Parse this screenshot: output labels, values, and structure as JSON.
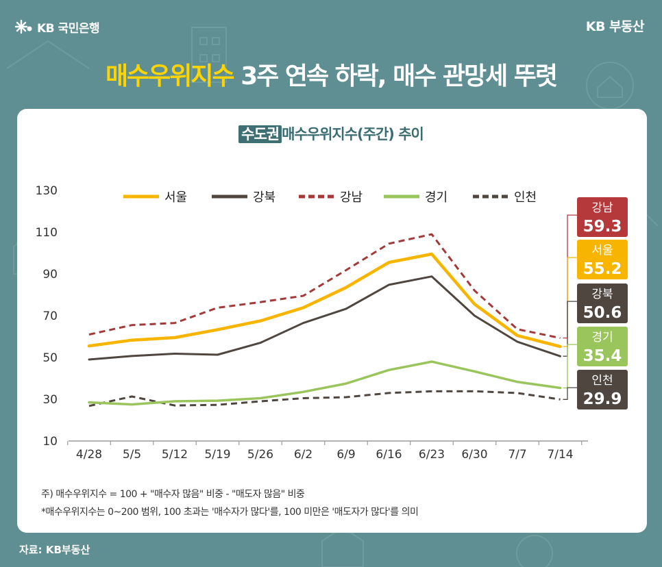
{
  "brand": {
    "left_label": "KB 국민은행",
    "right_label": "KB 부동산"
  },
  "headline": {
    "highlight": "매수우위지수",
    "rest": " 3주 연속 하락, 매수 관망세 뚜렷"
  },
  "chart_title": {
    "box": "수도권",
    "rest": "매수우위지수(주간) 추이"
  },
  "colors": {
    "seoul": "#f7b500",
    "gangbuk": "#4f4640",
    "gangnam": "#a33a3a",
    "gyeonggi": "#9ac45c",
    "incheon": "#4f4640"
  },
  "chart_data": {
    "type": "line",
    "categories": [
      "4/28",
      "5/5",
      "5/12",
      "5/19",
      "5/26",
      "6/2",
      "6/9",
      "6/16",
      "6/23",
      "6/30",
      "7/7",
      "7/14"
    ],
    "ylim": [
      10,
      130
    ],
    "yticks": [
      "130",
      "110",
      "90",
      "70",
      "50",
      "30",
      "10"
    ],
    "grid": false,
    "legend_position": "top",
    "series": [
      {
        "name": "서울",
        "key": "seoul",
        "style": "solid",
        "values": [
          55.5,
          58.3,
          59.5,
          63.3,
          67.5,
          73.8,
          83.5,
          95.5,
          99.5,
          75.5,
          60.5,
          55.2
        ]
      },
      {
        "name": "강북",
        "key": "gangbuk",
        "style": "solid",
        "values": [
          49.0,
          50.7,
          51.8,
          51.3,
          57.0,
          66.5,
          73.3,
          84.8,
          88.8,
          70.0,
          57.5,
          50.6
        ]
      },
      {
        "name": "강남",
        "key": "gangnam",
        "style": "dashed",
        "values": [
          61.0,
          65.5,
          66.5,
          73.8,
          76.5,
          79.5,
          91.8,
          104.5,
          109.0,
          82.0,
          63.5,
          59.3
        ]
      },
      {
        "name": "경기",
        "key": "gyeonggi",
        "style": "solid",
        "values": [
          28.5,
          27.5,
          29.0,
          29.3,
          30.5,
          33.5,
          37.5,
          44.0,
          48.0,
          43.3,
          38.3,
          35.4
        ]
      },
      {
        "name": "인천",
        "key": "incheon",
        "style": "dashed",
        "values": [
          26.8,
          31.3,
          27.0,
          27.3,
          29.0,
          30.5,
          31.0,
          33.0,
          33.8,
          33.8,
          33.0,
          29.9
        ]
      }
    ],
    "end_labels": [
      {
        "key": "gangnam",
        "name": "강남",
        "value": "59.3",
        "bg": "#b5393a"
      },
      {
        "key": "seoul",
        "name": "서울",
        "value": "55.2",
        "bg": "#f7b500"
      },
      {
        "key": "gangbuk",
        "name": "강북",
        "value": "50.6",
        "bg": "#4f4640"
      },
      {
        "key": "gyeonggi",
        "name": "경기",
        "value": "35.4",
        "bg": "#9ac45c"
      },
      {
        "key": "incheon",
        "name": "인천",
        "value": "29.9",
        "bg": "#4f4640"
      }
    ]
  },
  "notes": {
    "line1": "주) 매수우위지수 = 100 + \"매수자 많음\" 비중 - \"매도자 많음\" 비중",
    "line2": "*매수우위지수는 0~200 범위, 100 초과는 '매수자가 많다'를, 100 미만은 '매도자가 많다'를 의미"
  },
  "source": "자료: KB부동산"
}
